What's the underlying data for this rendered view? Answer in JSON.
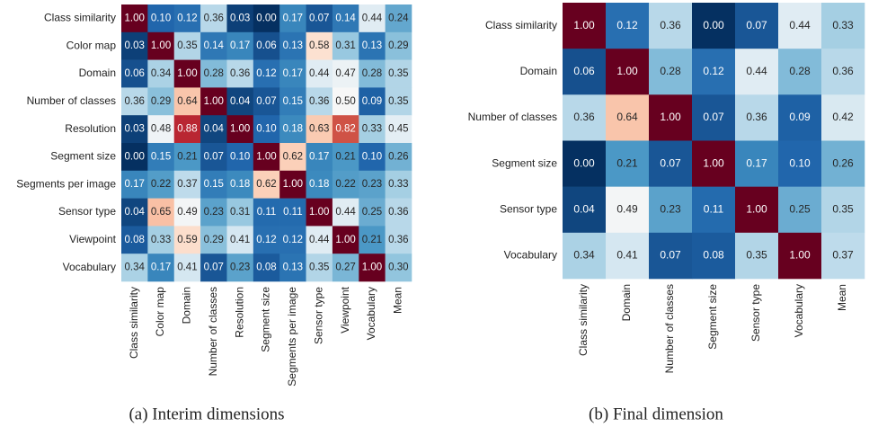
{
  "chart_data": [
    {
      "type": "heatmap",
      "caption": "(a) Interim dimensions",
      "rows": [
        "Class similarity",
        "Color map",
        "Domain",
        "Number of classes",
        "Resolution",
        "Segment size",
        "Segments per image",
        "Sensor type",
        "Viewpoint",
        "Vocabulary"
      ],
      "columns": [
        "Class similarity",
        "Color map",
        "Domain",
        "Number of classes",
        "Resolution",
        "Segment size",
        "Segments per image",
        "Sensor type",
        "Viewpoint",
        "Vocabulary",
        "Mean"
      ],
      "values": [
        [
          1,
          0.1,
          0.12,
          0.36,
          0.03,
          0,
          0.17,
          0.07,
          0.14,
          0.44,
          0.24
        ],
        [
          0.03,
          1,
          0.35,
          0.14,
          0.17,
          0.06,
          0.13,
          0.58,
          0.31,
          0.13,
          0.29
        ],
        [
          0.06,
          0.34,
          1,
          0.28,
          0.36,
          0.12,
          0.17,
          0.44,
          0.47,
          0.28,
          0.35
        ],
        [
          0.36,
          0.29,
          0.64,
          1,
          0.04,
          0.07,
          0.15,
          0.36,
          0.5,
          0.09,
          0.35
        ],
        [
          0.03,
          0.48,
          0.88,
          0.04,
          1,
          0.1,
          0.18,
          0.63,
          0.82,
          0.33,
          0.45
        ],
        [
          0,
          0.15,
          0.21,
          0.07,
          0.1,
          1,
          0.62,
          0.17,
          0.21,
          0.1,
          0.26
        ],
        [
          0.17,
          0.22,
          0.37,
          0.15,
          0.18,
          0.62,
          1,
          0.18,
          0.22,
          0.23,
          0.33
        ],
        [
          0.04,
          0.65,
          0.49,
          0.23,
          0.31,
          0.11,
          0.11,
          1,
          0.44,
          0.25,
          0.36
        ],
        [
          0.08,
          0.33,
          0.59,
          0.29,
          0.41,
          0.12,
          0.12,
          0.44,
          1,
          0.21,
          0.36
        ],
        [
          0.34,
          0.17,
          0.41,
          0.07,
          0.23,
          0.08,
          0.13,
          0.35,
          0.27,
          1,
          0.3
        ]
      ],
      "value_labels": [
        [
          "1.00",
          "0.10",
          "0.12",
          "0.36",
          "0.03",
          "0.00",
          "0.17",
          "0.07",
          "0.14",
          "0.44",
          "0.24"
        ],
        [
          "0.03",
          "1.00",
          "0.35",
          "0.14",
          "0.17",
          "0.06",
          "0.13",
          "0.58",
          "0.31",
          "0.13",
          "0.29"
        ],
        [
          "0.06",
          "0.34",
          "1.00",
          "0.28",
          "0.36",
          "0.12",
          "0.17",
          "0.44",
          "0.47",
          "0.28",
          "0.35"
        ],
        [
          "0.36",
          "0.29",
          "0.64",
          "1.00",
          "0.04",
          "0.07",
          "0.15",
          "0.36",
          "0.50",
          "0.09",
          "0.35"
        ],
        [
          "0.03",
          "0.48",
          "0.88",
          "0.04",
          "1.00",
          "0.10",
          "0.18",
          "0.63",
          "0.82",
          "0.33",
          "0.45"
        ],
        [
          "0.00",
          "0.15",
          "0.21",
          "0.07",
          "0.10",
          "1.00",
          "0.62",
          "0.17",
          "0.21",
          "0.10",
          "0.26"
        ],
        [
          "0.17",
          "0.22",
          "0.37",
          "0.15",
          "0.18",
          "0.62",
          "1.00",
          "0.18",
          "0.22",
          "0.23",
          "0.33"
        ],
        [
          "0.04",
          "0.65",
          "0.49",
          "0.23",
          "0.31",
          "0.11",
          "0.11",
          "1.00",
          "0.44",
          "0.25",
          "0.36"
        ],
        [
          "0.08",
          "0.33",
          "0.59",
          "0.29",
          "0.41",
          "0.12",
          "0.12",
          "0.44",
          "1.00",
          "0.21",
          "0.36"
        ],
        [
          "0.34",
          "0.17",
          "0.41",
          "0.07",
          "0.23",
          "0.08",
          "0.13",
          "0.35",
          "0.27",
          "1.00",
          "0.30"
        ]
      ],
      "vlim": [
        0,
        1
      ],
      "colorscale": [
        "#053061",
        "#2166ac",
        "#4393c3",
        "#92c5de",
        "#d1e5f0",
        "#f7f7f7",
        "#fddbc7",
        "#f4a582",
        "#d6604d",
        "#b2182b",
        "#67001f"
      ]
    },
    {
      "type": "heatmap",
      "caption": "(b) Final dimension",
      "rows": [
        "Class similarity",
        "Domain",
        "Number of classes",
        "Segment size",
        "Sensor type",
        "Vocabulary"
      ],
      "columns": [
        "Class similarity",
        "Domain",
        "Number of classes",
        "Segment size",
        "Sensor type",
        "Vocabulary",
        "Mean"
      ],
      "values": [
        [
          1,
          0.12,
          0.36,
          0,
          0.07,
          0.44,
          0.33
        ],
        [
          0.06,
          1,
          0.28,
          0.12,
          0.44,
          0.28,
          0.36
        ],
        [
          0.36,
          0.64,
          1,
          0.07,
          0.36,
          0.09,
          0.42
        ],
        [
          0,
          0.21,
          0.07,
          1,
          0.17,
          0.1,
          0.26
        ],
        [
          0.04,
          0.49,
          0.23,
          0.11,
          1,
          0.25,
          0.35
        ],
        [
          0.34,
          0.41,
          0.07,
          0.08,
          0.35,
          1,
          0.37
        ]
      ],
      "value_labels": [
        [
          "1.00",
          "0.12",
          "0.36",
          "0.00",
          "0.07",
          "0.44",
          "0.33"
        ],
        [
          "0.06",
          "1.00",
          "0.28",
          "0.12",
          "0.44",
          "0.28",
          "0.36"
        ],
        [
          "0.36",
          "0.64",
          "1.00",
          "0.07",
          "0.36",
          "0.09",
          "0.42"
        ],
        [
          "0.00",
          "0.21",
          "0.07",
          "1.00",
          "0.17",
          "0.10",
          "0.26"
        ],
        [
          "0.04",
          "0.49",
          "0.23",
          "0.11",
          "1.00",
          "0.25",
          "0.35"
        ],
        [
          "0.34",
          "0.41",
          "0.07",
          "0.08",
          "0.35",
          "1.00",
          "0.37"
        ]
      ],
      "vlim": [
        0,
        1
      ],
      "colorscale": [
        "#053061",
        "#2166ac",
        "#4393c3",
        "#92c5de",
        "#d1e5f0",
        "#f7f7f7",
        "#fddbc7",
        "#f4a582",
        "#d6604d",
        "#b2182b",
        "#67001f"
      ]
    }
  ]
}
